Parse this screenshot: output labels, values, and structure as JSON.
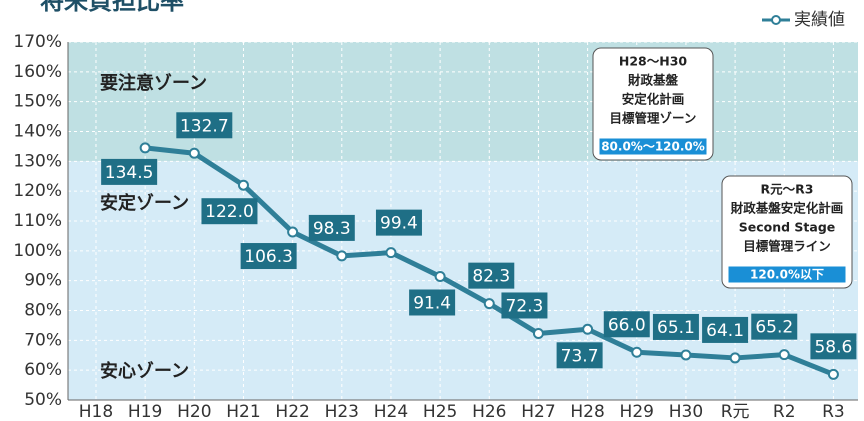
{
  "chart_data": {
    "type": "line",
    "title": "将来負担比率",
    "categories": [
      "H18",
      "H19",
      "H20",
      "H21",
      "H22",
      "H23",
      "H24",
      "H25",
      "H26",
      "H27",
      "H28",
      "H29",
      "H30",
      "R元",
      "R2",
      "R3"
    ],
    "series": [
      {
        "name": "実績値",
        "color": "#2f7f98",
        "values": [
          null,
          134.5,
          132.7,
          122.0,
          106.3,
          98.3,
          99.4,
          91.4,
          82.3,
          72.3,
          73.7,
          66.0,
          65.1,
          64.1,
          65.2,
          58.6
        ],
        "value_labels": [
          null,
          "134.5",
          "132.7",
          "122.0",
          "106.3",
          "98.3",
          "99.4",
          "91.4",
          "82.3",
          "72.3",
          "73.7",
          "66.0",
          "65.1",
          "64.1",
          "65.2",
          "58.6"
        ]
      }
    ],
    "ylim": [
      50,
      170
    ],
    "yticks": [
      {
        "value": 50,
        "label": "50%"
      },
      {
        "value": 60,
        "label": "60%"
      },
      {
        "value": 70,
        "label": "70%"
      },
      {
        "value": 80,
        "label": "80%"
      },
      {
        "value": 90,
        "label": "90%"
      },
      {
        "value": 100,
        "label": "100%"
      },
      {
        "value": 110,
        "label": "110%"
      },
      {
        "value": 120,
        "label": "120%"
      },
      {
        "value": 130,
        "label": "130%"
      },
      {
        "value": 140,
        "label": "140%"
      },
      {
        "value": 150,
        "label": "150%"
      },
      {
        "value": 160,
        "label": "160%"
      },
      {
        "value": 170,
        "label": "170%"
      }
    ],
    "grid": true,
    "legend": "top-right",
    "bands": [
      {
        "from": 130,
        "to": 170,
        "color": "#bfe0e3"
      },
      {
        "from": 50,
        "to": 130,
        "color": "#d5ebf7"
      }
    ],
    "zones": [
      "要注意ゾーン",
      "安定ゾーン",
      "安心ゾーン"
    ],
    "annotations": [
      {
        "lines": [
          "H28～H30",
          "財政基盤",
          "安定化計画",
          "目標管理ゾーン"
        ],
        "badge": "80.0%～120.0%"
      },
      {
        "lines": [
          "R元～R3",
          "財政基盤安定化計画",
          "Second Stage",
          "目標管理ライン"
        ],
        "badge": "120.0%以下"
      }
    ]
  }
}
